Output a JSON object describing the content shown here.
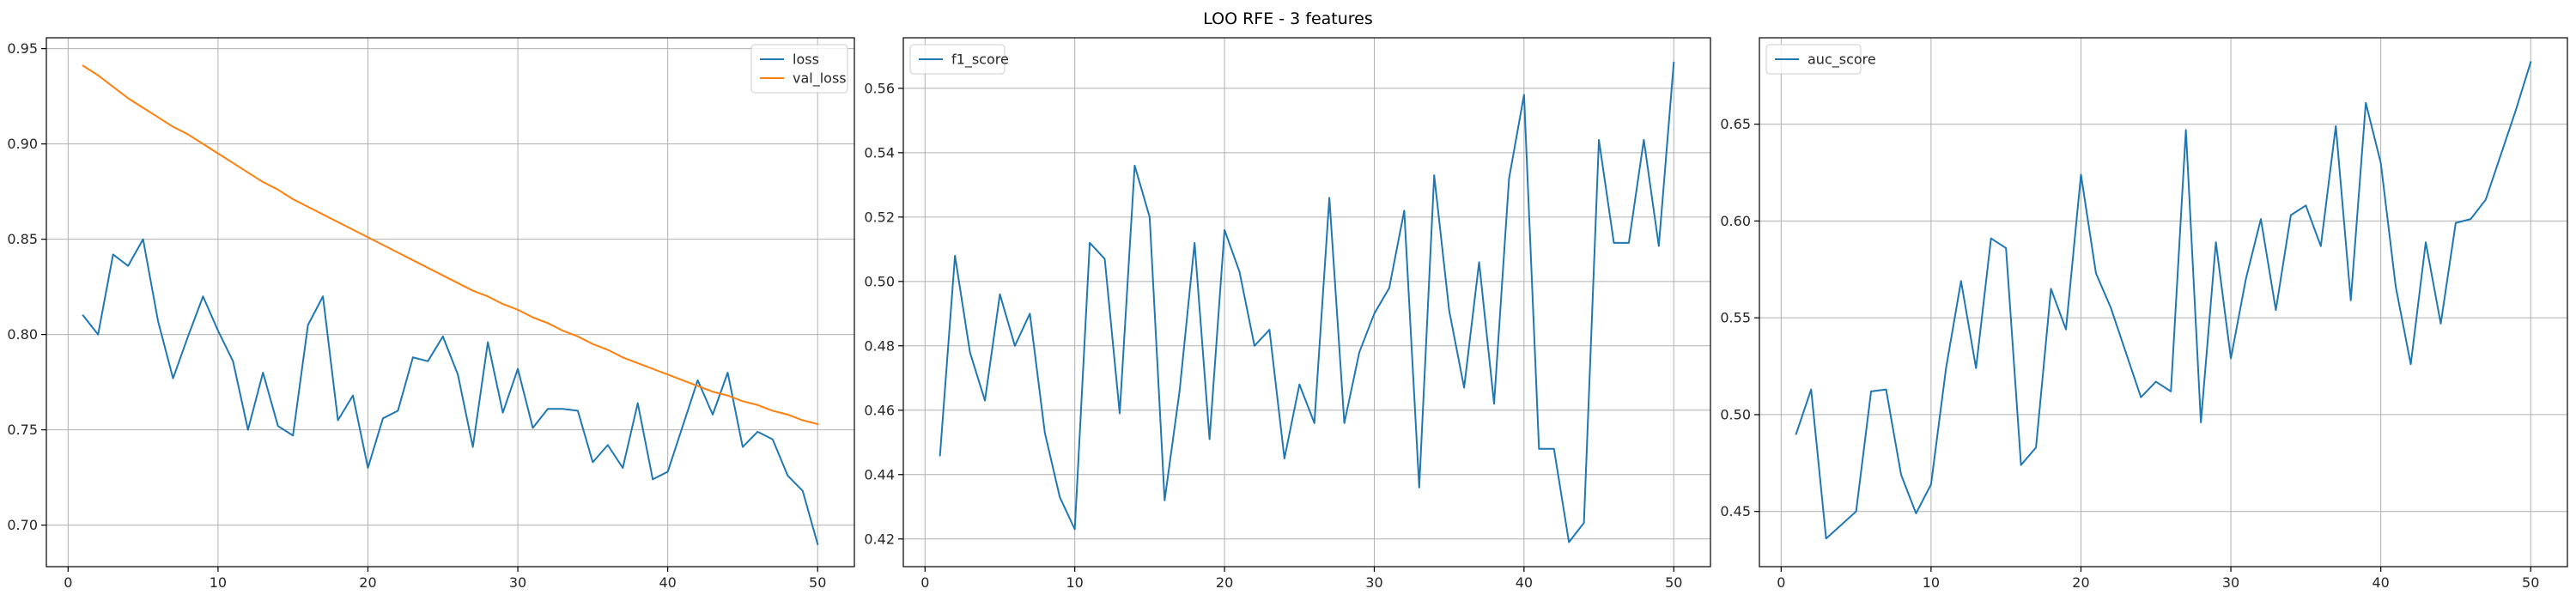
{
  "figure": {
    "suptitle": "LOO RFE - 3 features"
  },
  "colors": {
    "series_blue": "#1f77b4",
    "series_orange": "#ff7f0e",
    "grid": "#b0b0b0",
    "axis": "#000000"
  },
  "chart_data": [
    {
      "type": "line",
      "grid": true,
      "legend_placement": "top-right",
      "xlim": [
        -1.45,
        52.45
      ],
      "ylim": [
        0.6782,
        0.9557
      ],
      "xticks": [
        0,
        10,
        20,
        30,
        40,
        50
      ],
      "yticks": [
        0.7,
        0.75,
        0.8,
        0.85,
        0.9,
        0.95
      ],
      "ytick_labels": [
        "0.70",
        "0.75",
        "0.80",
        "0.85",
        "0.90",
        "0.95"
      ],
      "x": [
        1,
        2,
        3,
        4,
        5,
        6,
        7,
        8,
        9,
        10,
        11,
        12,
        13,
        14,
        15,
        16,
        17,
        18,
        19,
        20,
        21,
        22,
        23,
        24,
        25,
        26,
        27,
        28,
        29,
        30,
        31,
        32,
        33,
        34,
        35,
        36,
        37,
        38,
        39,
        40,
        41,
        42,
        43,
        44,
        45,
        46,
        47,
        48,
        49,
        50
      ],
      "series": [
        {
          "name": "loss",
          "color": "#1f77b4",
          "values": [
            0.81,
            0.8,
            0.842,
            0.836,
            0.85,
            0.807,
            0.777,
            0.799,
            0.82,
            0.802,
            0.786,
            0.75,
            0.78,
            0.752,
            0.747,
            0.805,
            0.82,
            0.755,
            0.768,
            0.73,
            0.756,
            0.76,
            0.788,
            0.786,
            0.799,
            0.779,
            0.741,
            0.796,
            0.759,
            0.782,
            0.751,
            0.761,
            0.761,
            0.76,
            0.733,
            0.742,
            0.73,
            0.764,
            0.724,
            0.728,
            0.752,
            0.776,
            0.758,
            0.78,
            0.741,
            0.749,
            0.745,
            0.726,
            0.718,
            0.69
          ]
        },
        {
          "name": "val_loss",
          "color": "#ff7f0e",
          "values": [
            0.941,
            0.936,
            0.93,
            0.924,
            0.919,
            0.914,
            0.909,
            0.905,
            0.9,
            0.895,
            0.89,
            0.885,
            0.88,
            0.876,
            0.871,
            0.867,
            0.863,
            0.859,
            0.855,
            0.851,
            0.847,
            0.843,
            0.839,
            0.835,
            0.831,
            0.827,
            0.823,
            0.82,
            0.816,
            0.813,
            0.809,
            0.806,
            0.802,
            0.799,
            0.795,
            0.792,
            0.788,
            0.785,
            0.782,
            0.779,
            0.776,
            0.773,
            0.77,
            0.768,
            0.765,
            0.763,
            0.76,
            0.758,
            0.755,
            0.753
          ]
        }
      ]
    },
    {
      "type": "line",
      "grid": true,
      "legend_placement": "top-left",
      "xlim": [
        -1.45,
        52.45
      ],
      "ylim": [
        0.4114,
        0.5757
      ],
      "xticks": [
        0,
        10,
        20,
        30,
        40,
        50
      ],
      "yticks": [
        0.42,
        0.44,
        0.46,
        0.48,
        0.5,
        0.52,
        0.54,
        0.56
      ],
      "ytick_labels": [
        "0.42",
        "0.44",
        "0.46",
        "0.48",
        "0.50",
        "0.52",
        "0.54",
        "0.56"
      ],
      "x": [
        1,
        2,
        3,
        4,
        5,
        6,
        7,
        8,
        9,
        10,
        11,
        12,
        13,
        14,
        15,
        16,
        17,
        18,
        19,
        20,
        21,
        22,
        23,
        24,
        25,
        26,
        27,
        28,
        29,
        30,
        31,
        32,
        33,
        34,
        35,
        36,
        37,
        38,
        39,
        40,
        41,
        42,
        43,
        44,
        45,
        46,
        47,
        48,
        49,
        50
      ],
      "series": [
        {
          "name": "f1_score",
          "color": "#1f77b4",
          "values": [
            0.446,
            0.508,
            0.478,
            0.463,
            0.496,
            0.48,
            0.49,
            0.453,
            0.433,
            0.423,
            0.512,
            0.507,
            0.459,
            0.536,
            0.52,
            0.432,
            0.466,
            0.512,
            0.451,
            0.516,
            0.503,
            0.48,
            0.485,
            0.445,
            0.468,
            0.456,
            0.526,
            0.456,
            0.478,
            0.49,
            0.498,
            0.522,
            0.436,
            0.533,
            0.491,
            0.467,
            0.506,
            0.462,
            0.532,
            0.558,
            0.448,
            0.448,
            0.419,
            0.425,
            0.544,
            0.512,
            0.512,
            0.544,
            0.511,
            0.568
          ]
        }
      ]
    },
    {
      "type": "line",
      "grid": true,
      "legend_placement": "top-left",
      "xlim": [
        -1.45,
        52.45
      ],
      "ylim": [
        0.4215,
        0.6946
      ],
      "xticks": [
        0,
        10,
        20,
        30,
        40,
        50
      ],
      "yticks": [
        0.45,
        0.5,
        0.55,
        0.6,
        0.65
      ],
      "ytick_labels": [
        "0.45",
        "0.50",
        "0.55",
        "0.60",
        "0.65"
      ],
      "x": [
        1,
        2,
        3,
        4,
        5,
        6,
        7,
        8,
        9,
        10,
        11,
        12,
        13,
        14,
        15,
        16,
        17,
        18,
        19,
        20,
        21,
        22,
        23,
        24,
        25,
        26,
        27,
        28,
        29,
        30,
        31,
        32,
        33,
        34,
        35,
        36,
        37,
        38,
        39,
        40,
        41,
        42,
        43,
        44,
        45,
        46,
        47,
        48,
        49,
        50
      ],
      "series": [
        {
          "name": "auc_score",
          "color": "#1f77b4",
          "values": [
            0.49,
            0.513,
            0.436,
            0.443,
            0.45,
            0.512,
            0.513,
            0.469,
            0.449,
            0.464,
            0.524,
            0.569,
            0.524,
            0.591,
            0.586,
            0.474,
            0.483,
            0.565,
            0.544,
            0.624,
            0.573,
            0.555,
            0.532,
            0.509,
            0.517,
            0.512,
            0.647,
            0.496,
            0.589,
            0.529,
            0.57,
            0.601,
            0.554,
            0.603,
            0.608,
            0.587,
            0.649,
            0.559,
            0.661,
            0.63,
            0.566,
            0.526,
            0.589,
            0.547,
            0.599,
            0.601,
            0.611,
            0.634,
            0.657,
            0.682
          ]
        }
      ]
    }
  ]
}
